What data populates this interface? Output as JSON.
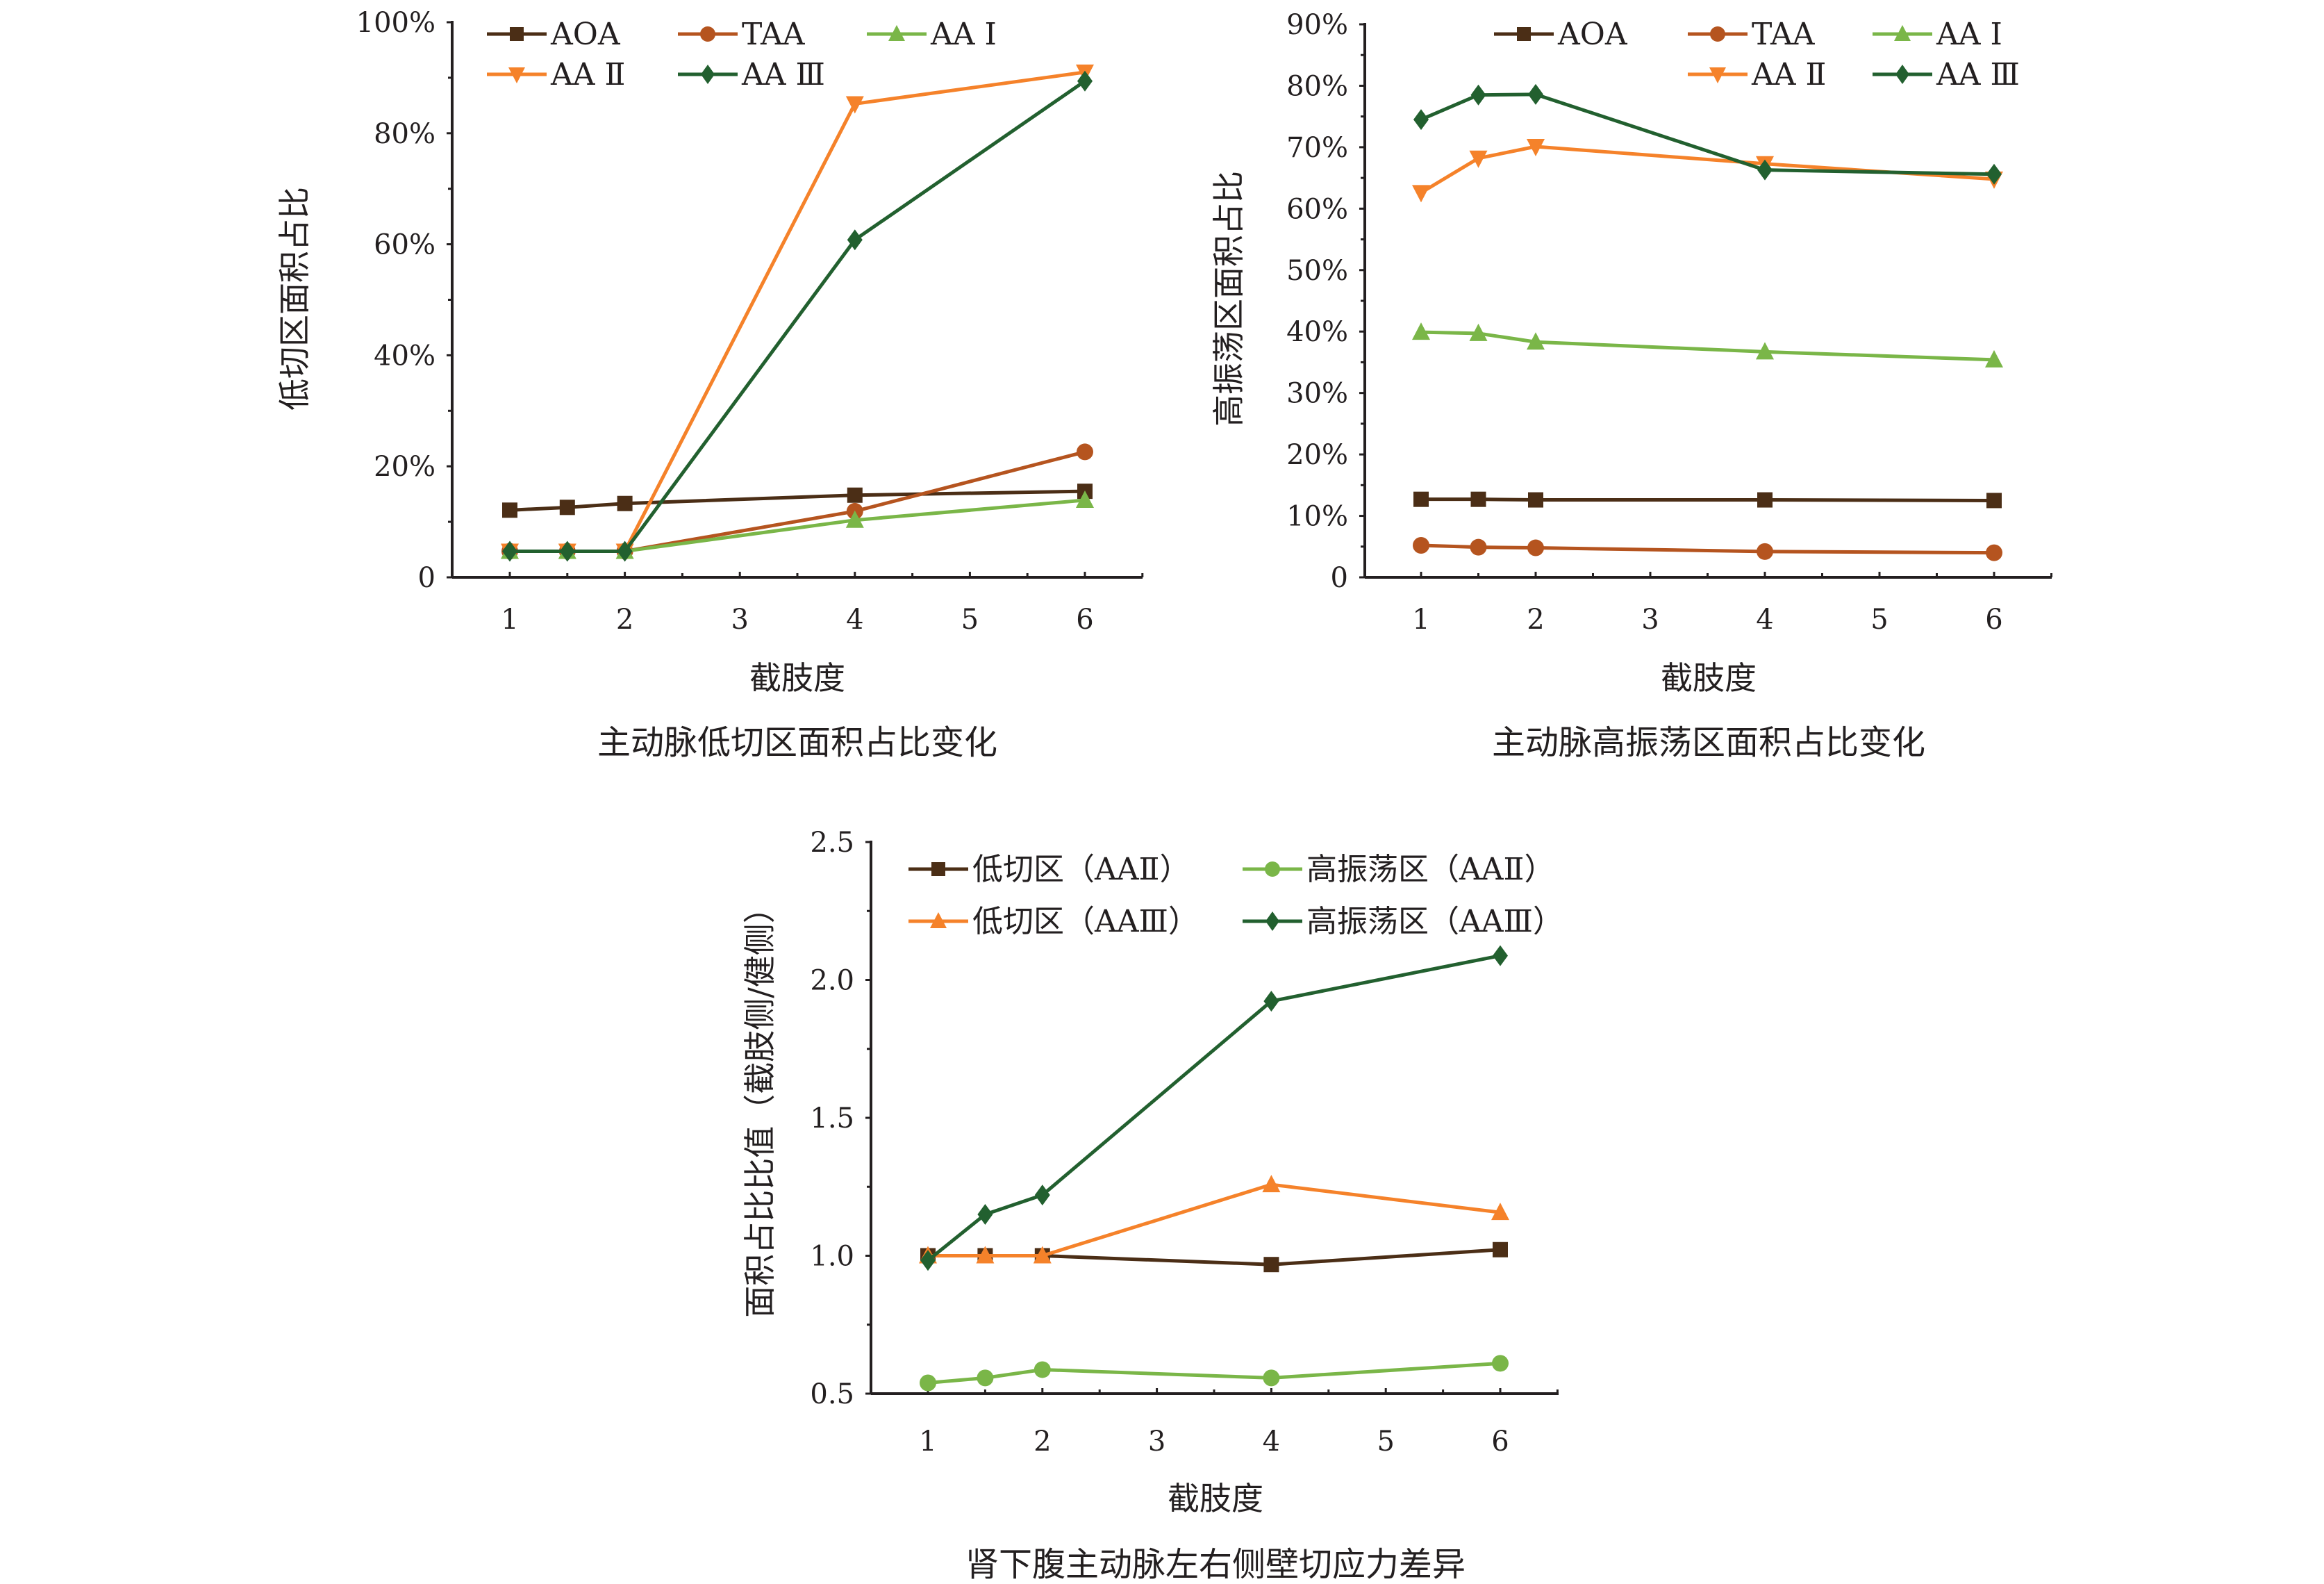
{
  "colors": {
    "AOA": "#4b2e16",
    "TAA": "#b5541f",
    "AAI": "#7ab648",
    "AAII": "#f5822a",
    "AAIII": "#22602f",
    "axis": "#231f20"
  },
  "chart_data": [
    {
      "type": "line",
      "title": "主动脉低切区面积占比变化",
      "xlabel": "截肢度",
      "ylabel": "低切区面积占比",
      "x": [
        1,
        1.5,
        2,
        4,
        6
      ],
      "xticks": [
        "1",
        "2",
        "3",
        "4",
        "5",
        "6"
      ],
      "xlim": [
        0.5,
        6.5
      ],
      "ylim": [
        0,
        100
      ],
      "yticks": [
        "0",
        "20%",
        "40%",
        "60%",
        "80%",
        "100%"
      ],
      "ytick_values": [
        0,
        20,
        40,
        60,
        80,
        100
      ],
      "legend": "top",
      "series": [
        {
          "name": "AOA",
          "marker": "square",
          "color_key": "AOA",
          "values": [
            12.1,
            12.6,
            13.3,
            14.8,
            15.5
          ]
        },
        {
          "name": "TAA",
          "marker": "circle",
          "color_key": "TAA",
          "values": [
            4.7,
            4.7,
            4.7,
            11.9,
            22.6
          ]
        },
        {
          "name": "AA Ⅰ",
          "marker": "triangle-up",
          "color_key": "AAI",
          "values": [
            4.7,
            4.7,
            4.7,
            10.3,
            13.9
          ]
        },
        {
          "name": "AA Ⅱ",
          "marker": "triangle-down",
          "color_key": "AAII",
          "values": [
            4.7,
            4.7,
            4.7,
            85.3,
            91.0
          ]
        },
        {
          "name": "AA Ⅲ",
          "marker": "diamond",
          "color_key": "AAIII",
          "values": [
            4.7,
            4.7,
            4.7,
            60.8,
            89.4
          ]
        }
      ]
    },
    {
      "type": "line",
      "title": "主动脉高振荡区面积占比变化",
      "xlabel": "截肢度",
      "ylabel": "高振荡区面积占比",
      "x": [
        1,
        1.5,
        2,
        4,
        6
      ],
      "xticks": [
        "1",
        "2",
        "3",
        "4",
        "5",
        "6"
      ],
      "xlim": [
        0.5,
        6.5
      ],
      "ylim": [
        0,
        90
      ],
      "yticks": [
        "0",
        "10%",
        "20%",
        "30%",
        "40%",
        "50%",
        "60%",
        "70%",
        "80%",
        "90%"
      ],
      "ytick_values": [
        0,
        10,
        20,
        30,
        40,
        50,
        60,
        70,
        80,
        90
      ],
      "legend": "top-right",
      "series": [
        {
          "name": "AOA",
          "marker": "square",
          "color_key": "AOA",
          "values": [
            12.7,
            12.7,
            12.6,
            12.6,
            12.5
          ]
        },
        {
          "name": "TAA",
          "marker": "circle",
          "color_key": "TAA",
          "values": [
            5.2,
            4.9,
            4.8,
            4.2,
            4.0
          ]
        },
        {
          "name": "AA Ⅰ",
          "marker": "triangle-up",
          "color_key": "AAI",
          "values": [
            39.9,
            39.7,
            38.3,
            36.7,
            35.4
          ]
        },
        {
          "name": "AA Ⅱ",
          "marker": "triangle-down",
          "color_key": "AAII",
          "values": [
            62.6,
            68.2,
            70.1,
            67.3,
            64.8
          ]
        },
        {
          "name": "AA Ⅲ",
          "marker": "diamond",
          "color_key": "AAIII",
          "values": [
            74.5,
            78.5,
            78.6,
            66.3,
            65.6
          ]
        }
      ]
    },
    {
      "type": "line",
      "title": "肾下腹主动脉左右侧壁切应力差异",
      "xlabel": "截肢度",
      "ylabel": "面积占比比值（截肢侧/健侧）",
      "x": [
        1,
        1.5,
        2,
        4,
        6
      ],
      "xticks": [
        "1",
        "2",
        "3",
        "4",
        "5",
        "6"
      ],
      "xlim": [
        0.5,
        6.5
      ],
      "ylim": [
        0.5,
        2.5
      ],
      "yticks": [
        "0.5",
        "1.0",
        "1.5",
        "2.0",
        "2.5"
      ],
      "ytick_values": [
        0.5,
        1.0,
        1.5,
        2.0,
        2.5
      ],
      "legend": "top",
      "series": [
        {
          "name": "低切区（AAⅡ）",
          "marker": "square",
          "color_key": "AOA",
          "values": [
            1.0,
            1.0,
            1.0,
            0.968,
            1.022
          ]
        },
        {
          "name": "高振荡区（AAⅡ）",
          "marker": "circle",
          "color_key": "AAI",
          "values": [
            0.539,
            0.557,
            0.587,
            0.557,
            0.61
          ]
        },
        {
          "name": "低切区（AAⅢ）",
          "marker": "triangle-up",
          "color_key": "AAII",
          "values": [
            1.0,
            1.0,
            1.0,
            1.258,
            1.157
          ]
        },
        {
          "name": "高振荡区（AAⅢ）",
          "marker": "diamond",
          "color_key": "AAIII",
          "values": [
            0.983,
            1.15,
            1.22,
            1.923,
            2.088
          ]
        }
      ]
    }
  ]
}
